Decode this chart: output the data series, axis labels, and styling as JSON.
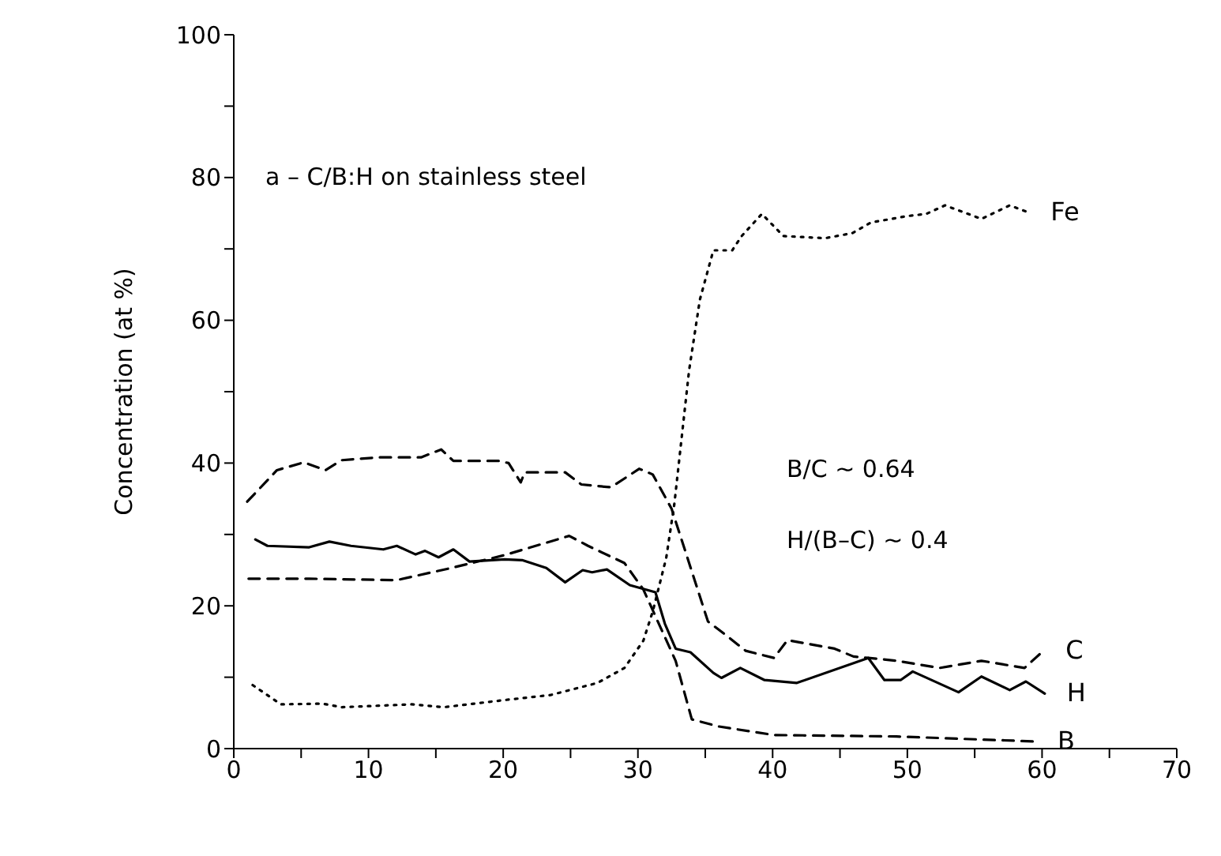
{
  "chart_data": {
    "type": "line",
    "ylabel": "Concentration (at %)",
    "annotations": [
      "a – C/B:H on stainless steel",
      "B/C ~ 0.64",
      "H/(B–C) ~ 0.4"
    ],
    "xlim": [
      0,
      70
    ],
    "xticks": [
      0,
      {
        "value": 5,
        "label": null
      },
      10,
      {
        "value": 15,
        "label": null
      },
      20,
      {
        "value": 25,
        "label": null
      },
      30,
      {
        "value": 35,
        "label": null
      },
      40,
      {
        "value": 45,
        "label": null
      },
      50,
      {
        "value": 55,
        "label": null
      },
      60,
      {
        "value": 65,
        "label": null
      },
      70
    ],
    "ylim": [
      0,
      100
    ],
    "yticks": [
      0,
      {
        "value": 10,
        "label": null
      },
      20,
      {
        "value": 30,
        "label": null
      },
      40,
      {
        "value": 50,
        "label": null
      },
      60,
      {
        "value": 70,
        "label": null
      },
      80,
      {
        "value": 90,
        "label": null
      },
      100
    ],
    "grid": false,
    "legend": false,
    "marker": "none",
    "series": [
      {
        "name": "Fe",
        "color": "#000000",
        "line_style": "dotted",
        "x": [
          1.4,
          3.5,
          6.6,
          8,
          13.2,
          15.6,
          20.1,
          23.5,
          27,
          29,
          30.4,
          31.1,
          32.1,
          32.7,
          33.8,
          34.6,
          35.6,
          37,
          37.7,
          39.2,
          40.8,
          43.9,
          45.9,
          47.3,
          50,
          51.4,
          52.8,
          55.5,
          57.6,
          59
        ],
        "values": [
          8.9,
          6.2,
          6.3,
          5.8,
          6.2,
          5.8,
          6.8,
          7.5,
          9.2,
          11.3,
          15.1,
          19.2,
          26.7,
          34.2,
          53,
          62.9,
          69.8,
          69.8,
          71.8,
          74.9,
          71.8,
          71.5,
          72.2,
          73.7,
          74.6,
          74.9,
          76.1,
          74.2,
          76.1,
          75.1
        ]
      },
      {
        "name": "C",
        "color": "#000000",
        "line_style": "dashed",
        "x": [
          1,
          3.2,
          5.2,
          6.8,
          8,
          10.8,
          13.9,
          15.4,
          16.3,
          19.7,
          20.4,
          21.3,
          21.6,
          24.6,
          25.8,
          28,
          30.1,
          31.1,
          32.5,
          33.8,
          35.2,
          36.6,
          38,
          40.1,
          41.1,
          44.6,
          46,
          47.1,
          49.2,
          52.4,
          55.5,
          58.7,
          60.1
        ],
        "values": [
          34.6,
          39,
          40.1,
          39,
          40.4,
          40.8,
          40.8,
          41.9,
          40.3,
          40.3,
          40,
          37.3,
          38.7,
          38.7,
          37,
          36.6,
          39.2,
          38.4,
          33.6,
          26,
          17.8,
          15.8,
          13.7,
          12.7,
          15.2,
          14,
          12.9,
          12.7,
          12.3,
          11.3,
          12.3,
          11.3,
          13.7
        ]
      },
      {
        "name": "H",
        "color": "#000000",
        "line_style": "solid",
        "x": [
          1.6,
          2.5,
          5.6,
          7.1,
          8.7,
          11.1,
          12.1,
          13.5,
          14.2,
          15.2,
          16.3,
          17.5,
          20.1,
          21.4,
          23.2,
          24.6,
          25.9,
          26.6,
          27.7,
          29.4,
          31.3,
          32,
          32.8,
          33.9,
          35.6,
          36.2,
          37.6,
          39.4,
          41.8,
          47.1,
          48.3,
          49.5,
          50.4,
          53.8,
          55.5,
          57.6,
          58.8,
          60.2
        ],
        "values": [
          29.3,
          28.4,
          28.2,
          29,
          28.4,
          27.9,
          28.4,
          27.2,
          27.7,
          26.8,
          27.9,
          26.2,
          26.5,
          26.4,
          25.3,
          23.3,
          25,
          24.7,
          25.1,
          22.9,
          21.9,
          17.5,
          14,
          13.5,
          10.6,
          9.9,
          11.3,
          9.6,
          9.2,
          12.7,
          9.6,
          9.6,
          10.8,
          7.9,
          10.1,
          8.2,
          9.4,
          7.7
        ]
      },
      {
        "name": "B",
        "color": "#000000",
        "line_style": "dashed",
        "x": [
          1.1,
          5.6,
          12.1,
          15.9,
          20.1,
          24.9,
          26.3,
          29,
          30.4,
          32.8,
          34,
          36,
          40.1,
          49.2,
          59.5
        ],
        "values": [
          23.8,
          23.8,
          23.6,
          25.2,
          27.1,
          29.8,
          28.4,
          26,
          22.3,
          12.3,
          4.1,
          3.1,
          1.9,
          1.7,
          1
        ]
      }
    ]
  }
}
